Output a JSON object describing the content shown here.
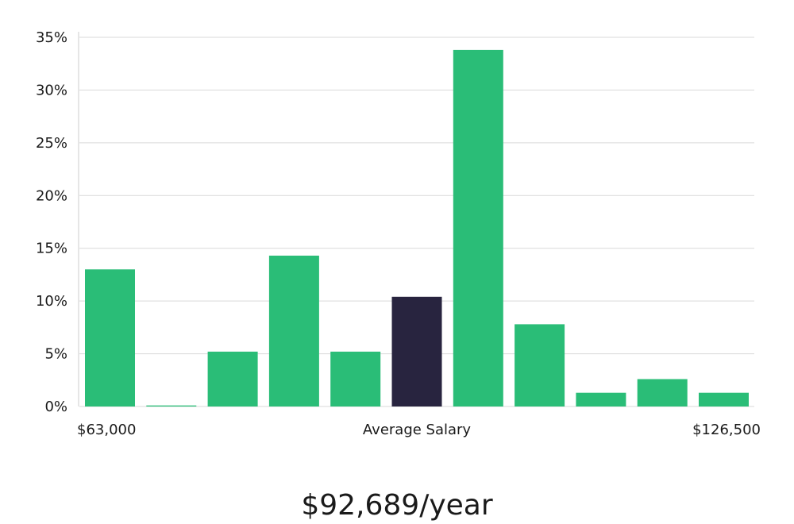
{
  "colors": {
    "bar": "#2abd77",
    "highlight": "#28243f",
    "grid": "#d9d9d9",
    "axis": "#cccccc"
  },
  "salary": {
    "average_label": "Average Salary",
    "min_label": "$63,000",
    "max_label": "$126,500",
    "headline": "$92,689/year"
  },
  "chart_data": {
    "type": "bar",
    "categories": [
      "1",
      "2",
      "3",
      "4",
      "5",
      "6",
      "7",
      "8",
      "9",
      "10",
      "11"
    ],
    "values": [
      13.0,
      0.1,
      5.2,
      14.3,
      5.2,
      10.4,
      33.8,
      7.8,
      1.3,
      2.6,
      1.3
    ],
    "highlight_index": 5,
    "ylim": [
      0,
      35
    ],
    "yticks": [
      0,
      5,
      10,
      15,
      20,
      25,
      30,
      35
    ],
    "ytick_labels": [
      "0%",
      "5%",
      "10%",
      "15%",
      "20%",
      "25%",
      "30%",
      "35%"
    ],
    "grid": true
  }
}
